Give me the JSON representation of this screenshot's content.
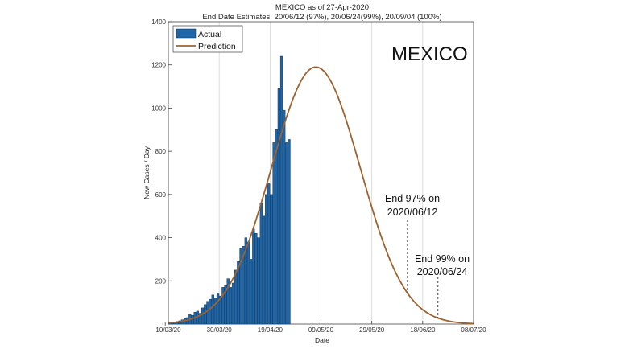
{
  "chart_data": {
    "type": "bar",
    "title": "MEXICO as of 27-Apr-2020",
    "subtitle": "End Date Estimates: 20/06/12 (97%), 20/06/24(99%), 20/09/04 (100%)",
    "xlabel": "Date",
    "ylabel": "New Cases / Day",
    "xlim": [
      "2020-03-10",
      "2020-07-08"
    ],
    "ylim": [
      0,
      1400
    ],
    "grid": "vertical",
    "legend_position": "top-left",
    "x_ticks": [
      "10/03/20",
      "30/03/20",
      "19/04/20",
      "09/05/20",
      "29/05/20",
      "18/06/20",
      "08/07/20"
    ],
    "y_ticks": [
      0,
      200,
      400,
      600,
      800,
      1000,
      1200,
      1400
    ],
    "in_chart_label": "MEXICO",
    "series": [
      {
        "name": "Actual",
        "kind": "bar",
        "color": "#1f66a8",
        "start_date": "2020-03-10",
        "values": [
          5,
          8,
          10,
          12,
          15,
          20,
          25,
          30,
          45,
          40,
          55,
          60,
          50,
          75,
          90,
          105,
          115,
          135,
          120,
          140,
          130,
          170,
          180,
          210,
          170,
          190,
          250,
          290,
          350,
          360,
          400,
          380,
          300,
          440,
          420,
          400,
          560,
          500,
          600,
          650,
          600,
          840,
          900,
          1090,
          1240,
          990,
          840,
          855
        ]
      },
      {
        "name": "Prediction",
        "kind": "line",
        "color": "#a0622c",
        "peak_date": "2020-05-07",
        "peak_value": 1190,
        "spread_days": 17.5
      }
    ],
    "annotations": [
      {
        "line1": "End 97% on",
        "line2": "2020/06/12",
        "date": "2020-06-12"
      },
      {
        "line1": "End 99% on",
        "line2": "2020/06/24",
        "date": "2020-06-24"
      }
    ]
  }
}
